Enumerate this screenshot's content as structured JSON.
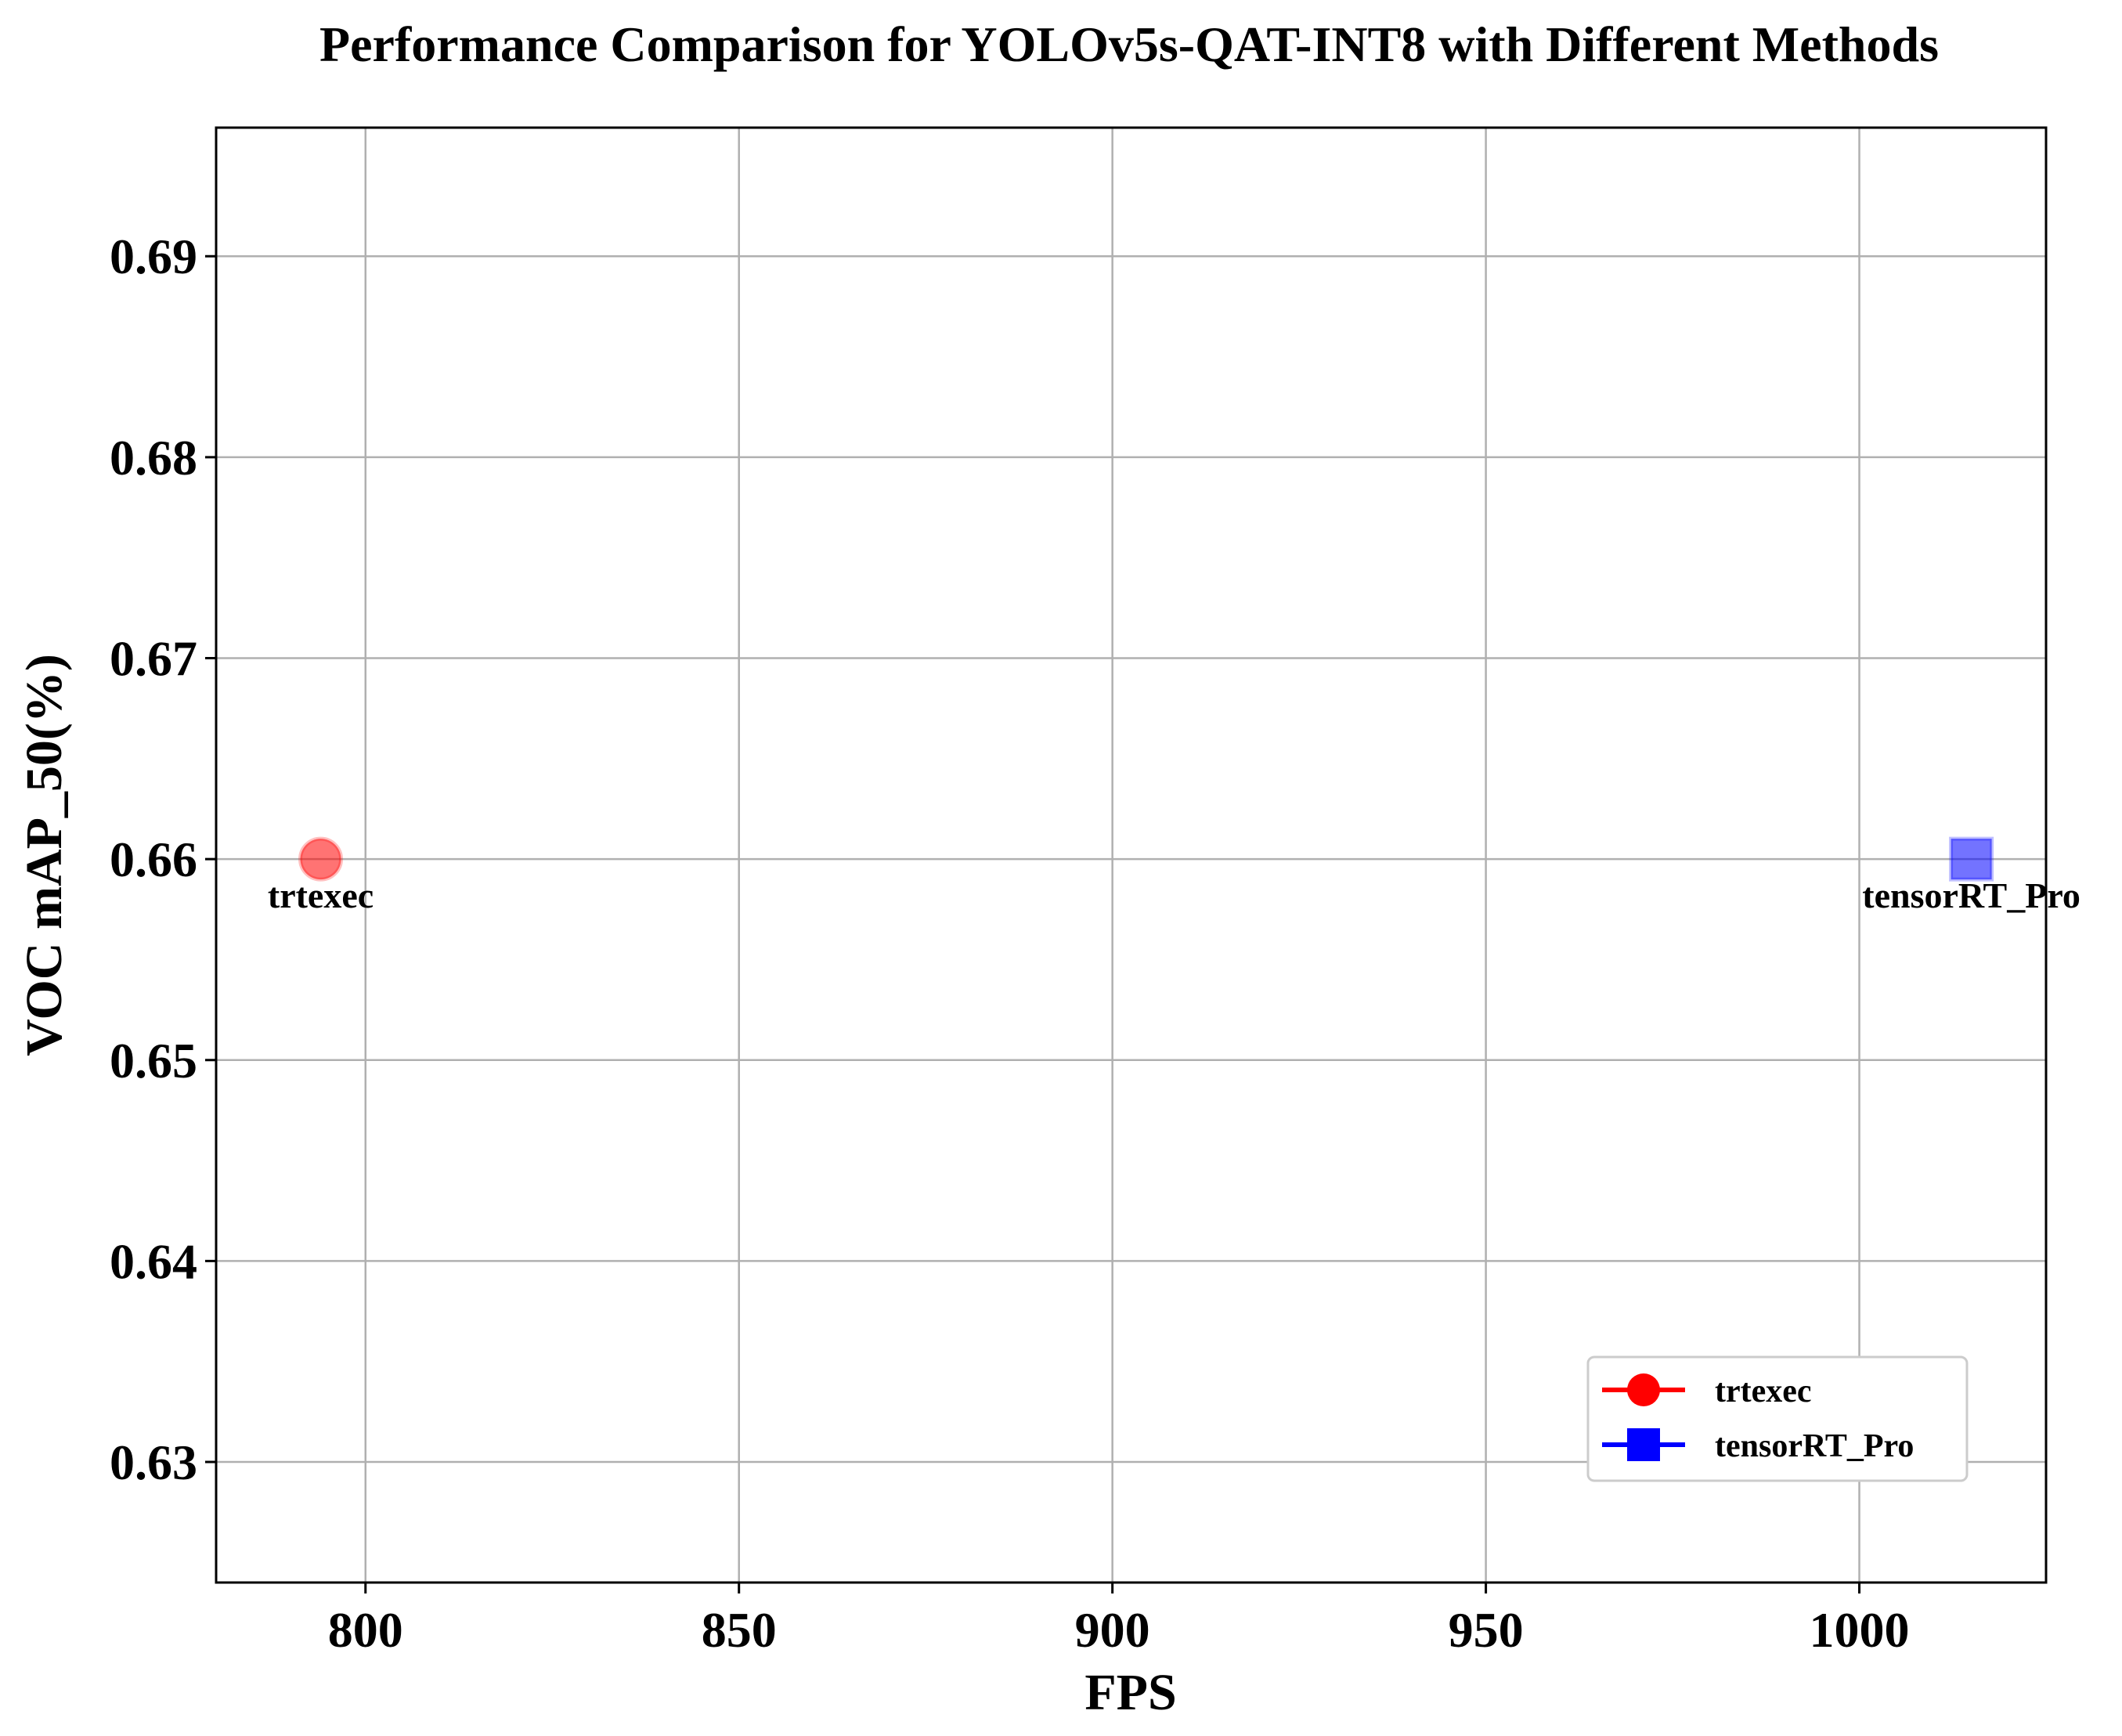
{
  "chart_data": {
    "type": "scatter",
    "title": "Performance Comparison for YOLOv5s-QAT-INT8 with Different Methods",
    "xlabel": "FPS",
    "ylabel": "VOC mAP_50(%)",
    "xlim": [
      780,
      1025
    ],
    "ylim": [
      0.624,
      0.6964
    ],
    "xticks": [
      800,
      850,
      900,
      950,
      1000
    ],
    "yticks": [
      0.63,
      0.64,
      0.65,
      0.66,
      0.67,
      0.68,
      0.69
    ],
    "grid": true,
    "legend_position": "lower-right",
    "series": [
      {
        "name": "trtexec",
        "marker": "circle",
        "color": "#ff0000",
        "x": [
          794
        ],
        "y": [
          0.66
        ],
        "labels": [
          "trtexec"
        ]
      },
      {
        "name": "tensorRT_Pro",
        "marker": "square",
        "color": "#0000ff",
        "x": [
          1015
        ],
        "y": [
          0.66
        ],
        "labels": [
          "tensorRT_Pro"
        ]
      }
    ]
  }
}
